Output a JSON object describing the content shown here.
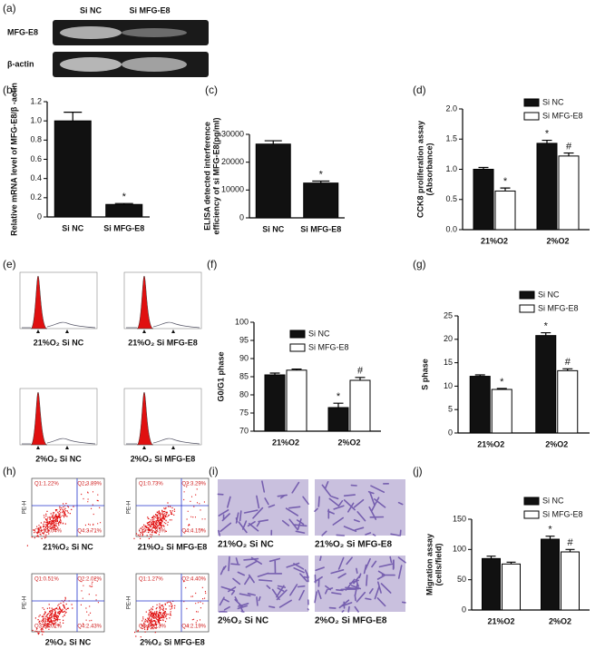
{
  "panel_labels": [
    "(a)",
    "(b)",
    "(c)",
    "(d)",
    "(e)",
    "(f)",
    "(g)",
    "(h)",
    "(i)",
    "(j)"
  ],
  "blot": {
    "columns": [
      "Si NC",
      "Si MFG-E8"
    ],
    "rows": [
      "MFG-E8",
      "β-actin"
    ]
  },
  "histograms": {
    "captions": [
      "21%O₂ Si NC",
      "21%O₂ Si MFG-E8",
      "2%O₂ Si NC",
      "2%O₂ Si MFG-E8"
    ]
  },
  "dot_plots": {
    "axis_label": "PE-H",
    "captions": [
      "21%O₂ Si NC",
      "21%O₂ Si MFG-E8",
      "2%O₂ Si NC",
      "2%O₂ Si MFG-E8"
    ],
    "quadrants": [
      [
        "Q1:1.22%",
        "Q2:3.89%",
        "Q3:91.04%",
        "Q4:3.71%"
      ],
      [
        "Q1:0.73%",
        "Q2:3.29%",
        "Q3:91.83%",
        "Q4:4.15%"
      ],
      [
        "Q1:0.51%",
        "Q2:2.02%",
        "Q3:93.02%",
        "Q4:2.43%"
      ],
      [
        "Q1:1.27%",
        "Q2:4.40%",
        "Q3:92.13%",
        "Q4:2.19%"
      ]
    ]
  },
  "micrographs": {
    "captions": [
      "21%O₂ Si NC",
      "21%O₂ Si MFG-E8",
      "2%O₂ Si NC",
      "2%O₂ Si MFG-E8"
    ]
  },
  "chart_data": [
    {
      "type": "bar",
      "ylabel": [
        "Relative mRNA level of MFG-E8/β -actin"
      ],
      "categories": [
        "Si NC",
        "Si MFG-E8"
      ],
      "values": [
        1.0,
        0.13
      ],
      "errors": [
        0.09,
        0.01
      ],
      "markers": [
        null,
        "*"
      ],
      "color": "#111111",
      "ylim": [
        0,
        1.2
      ],
      "yticks": [
        0,
        0.2,
        0.4,
        0.6,
        0.8,
        {
          "value": 1,
          "label": "1.0"
        },
        1.2
      ]
    },
    {
      "type": "bar",
      "ylabel": [
        "ELISA detected interference",
        "efficiency of si MFG-E8(pg/ml)"
      ],
      "categories": [
        "Si NC",
        "Si MFG-E8"
      ],
      "values": [
        26500,
        12500
      ],
      "errors": [
        1200,
        700
      ],
      "markers": [
        null,
        "*"
      ],
      "color": "#111111",
      "ylim": [
        0,
        30000
      ],
      "yticks": [
        0,
        10000,
        20000,
        30000
      ]
    },
    {
      "type": "grouped_bar",
      "ylabel": [
        "CCK8 proliferation assay",
        "(Absorbance)"
      ],
      "categories": [
        "21%O2",
        "2%O2"
      ],
      "legend": "upper right",
      "series": [
        {
          "name": "Si NC",
          "color": "#111111",
          "values": [
            1.0,
            1.43
          ],
          "errors": [
            0.03,
            0.05
          ],
          "markers": [
            null,
            "*"
          ]
        },
        {
          "name": "Si MFG-E8",
          "color": "#ffffff",
          "values": [
            0.64,
            1.22
          ],
          "errors": [
            0.05,
            0.05
          ],
          "markers": [
            "*",
            "#"
          ]
        }
      ],
      "ylim": [
        0,
        2
      ],
      "yticks": [
        {
          "value": 0,
          "label": "0.0"
        },
        0.5,
        {
          "value": 1,
          "label": "1.0"
        },
        1.5,
        {
          "value": 2,
          "label": "2.0"
        }
      ]
    },
    {
      "type": "grouped_bar",
      "ylabel": [
        "G0/G1 phase"
      ],
      "categories": [
        "21%O2",
        "2%O2"
      ],
      "legend": "upper right",
      "series": [
        {
          "name": "Si NC",
          "color": "#111111",
          "values": [
            85.5,
            76.5
          ],
          "errors": [
            0.5,
            1.2
          ],
          "markers": [
            null,
            "*"
          ]
        },
        {
          "name": "Si MFG-E8",
          "color": "#ffffff",
          "values": [
            86.8,
            84
          ],
          "errors": [
            0.3,
            0.8
          ],
          "markers": [
            null,
            "#"
          ]
        }
      ],
      "ylim": [
        70,
        100
      ],
      "yticks": [
        70,
        75,
        80,
        85,
        90,
        95,
        100
      ]
    },
    {
      "type": "grouped_bar",
      "ylabel": [
        "S phase"
      ],
      "categories": [
        "21%O2",
        "2%O2"
      ],
      "legend": "upper right",
      "series": [
        {
          "name": "Si NC",
          "color": "#111111",
          "values": [
            12.1,
            20.8
          ],
          "errors": [
            0.3,
            0.6
          ],
          "markers": [
            null,
            "*"
          ]
        },
        {
          "name": "Si MFG-E8",
          "color": "#ffffff",
          "values": [
            9.3,
            13.3
          ],
          "errors": [
            0.2,
            0.4
          ],
          "markers": [
            "*",
            "#"
          ]
        }
      ],
      "ylim": [
        0,
        25
      ],
      "yticks": [
        0,
        5,
        10,
        15,
        20,
        25
      ]
    },
    {
      "type": "grouped_bar",
      "ylabel": [
        "Migration assay",
        "(cells/field)"
      ],
      "categories": [
        "21%O2",
        "2%O2"
      ],
      "legend": "upper right",
      "series": [
        {
          "name": "Si NC",
          "color": "#111111",
          "values": [
            85,
            117
          ],
          "errors": [
            4,
            5
          ],
          "markers": [
            null,
            "*"
          ]
        },
        {
          "name": "Si MFG-E8",
          "color": "#ffffff",
          "values": [
            76,
            96
          ],
          "errors": [
            3,
            4
          ],
          "markers": [
            null,
            "#"
          ]
        }
      ],
      "ylim": [
        0,
        150
      ],
      "yticks": [
        0,
        50,
        100,
        150
      ]
    }
  ]
}
